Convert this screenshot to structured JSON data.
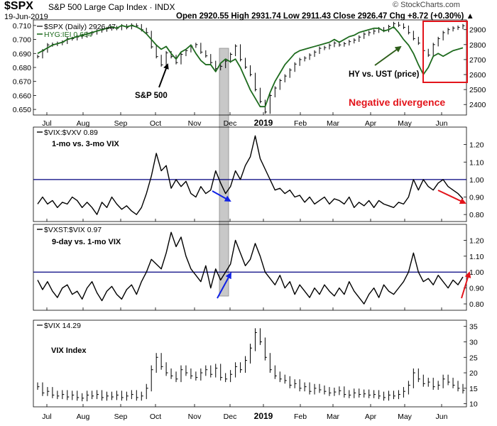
{
  "header": {
    "symbol": "$SPX",
    "name": "S&P 500 Large Cap Index",
    "exchange": "INDX",
    "date": "19-Jun-2019",
    "ohlc": "Open 2920.55   High 2931.74   Low 2911.43   Close 2926.47   Chg +8.72 (+0.30%) ▲",
    "copyright": "© StockCharts.com"
  },
  "colors": {
    "price": "#000000",
    "hyg_ratio": "#1e6b1e",
    "reference_line": "#00007f",
    "highlight_box": "#e3141b",
    "shaded_band": "#c8c8c8",
    "arrow_blue": "#1022e6",
    "arrow_red": "#e3141b",
    "arrow_green": "#2e5e1a"
  },
  "chart_data": [
    {
      "type": "line",
      "panel": "price",
      "legend": [
        "$SPX (Daily) 2926.47",
        "HYG:IEI 0.694"
      ],
      "right_axis_ticks": [
        2400,
        2500,
        2600,
        2700,
        2800,
        2900
      ],
      "left_axis_ticks": [
        0.65,
        0.66,
        0.67,
        0.68,
        0.69,
        0.7,
        0.71
      ],
      "ylim_right": [
        2330,
        2965
      ],
      "ylim_left": [
        0.646,
        0.714
      ],
      "x_labels": [
        "Jul",
        "Aug",
        "Sep",
        "Oct",
        "Nov",
        "Dec",
        "2019",
        "Feb",
        "Mar",
        "Apr",
        "May",
        "Jun"
      ],
      "series": [
        {
          "name": "$SPX (Daily)",
          "axis": "right",
          "style": "hlc_bars",
          "values": [
            2720,
            2758,
            2798,
            2802,
            2808,
            2816,
            2839,
            2840,
            2851,
            2858,
            2874,
            2879,
            2892,
            2898,
            2906,
            2913,
            2908,
            2925,
            2914,
            2930,
            2925,
            2900,
            2880,
            2785,
            2720,
            2665,
            2745,
            2720,
            2680,
            2735,
            2760,
            2790,
            2800,
            2750,
            2725,
            2680,
            2640,
            2655,
            2690,
            2735,
            2790,
            2700,
            2650,
            2600,
            2500,
            2420,
            2350,
            2460,
            2510,
            2560,
            2590,
            2630,
            2670,
            2700,
            2710,
            2730,
            2750,
            2775,
            2780,
            2795,
            2810,
            2798,
            2806,
            2820,
            2830,
            2850,
            2870,
            2880,
            2890,
            2905,
            2895,
            2920,
            2940,
            2930,
            2915,
            2880,
            2840,
            2810,
            2760,
            2730,
            2800,
            2840,
            2880,
            2900,
            2910,
            2915,
            2926
          ]
        },
        {
          "name": "HYG:IEI",
          "axis": "left",
          "style": "line",
          "values": [
            0.69,
            0.692,
            0.694,
            0.696,
            0.697,
            0.698,
            0.7,
            0.701,
            0.702,
            0.703,
            0.704,
            0.705,
            0.706,
            0.707,
            0.708,
            0.709,
            0.708,
            0.71,
            0.709,
            0.71,
            0.709,
            0.707,
            0.704,
            0.7,
            0.696,
            0.693,
            0.695,
            0.69,
            0.686,
            0.691,
            0.693,
            0.696,
            0.69,
            0.685,
            0.682,
            0.682,
            0.677,
            0.683,
            0.686,
            0.684,
            0.686,
            0.68,
            0.672,
            0.664,
            0.658,
            0.652,
            0.652,
            0.662,
            0.67,
            0.676,
            0.682,
            0.686,
            0.69,
            0.692,
            0.693,
            0.694,
            0.695,
            0.696,
            0.697,
            0.698,
            0.7,
            0.698,
            0.7,
            0.702,
            0.703,
            0.705,
            0.706,
            0.707,
            0.708,
            0.708,
            0.706,
            0.707,
            0.709,
            0.705,
            0.7,
            0.696,
            0.69,
            0.682,
            0.675,
            0.68,
            0.688,
            0.69,
            0.688,
            0.69,
            0.692,
            0.693,
            0.694
          ]
        }
      ],
      "annotations": [
        "S&P 500",
        "HY vs. UST (price)",
        "Negative divergence"
      ]
    },
    {
      "type": "line",
      "panel": "vix_vxv",
      "legend": "$VIX:$VXV 0.89",
      "label": "1-mo vs. 3-mo VIX",
      "ylim": [
        0.76,
        1.3
      ],
      "y_ticks": [
        0.8,
        0.9,
        1.0,
        1.1,
        1.2
      ],
      "reference_line": 1.0,
      "series": [
        {
          "name": "$VIX:$VXV",
          "values": [
            0.86,
            0.9,
            0.86,
            0.88,
            0.84,
            0.87,
            0.86,
            0.9,
            0.88,
            0.84,
            0.87,
            0.84,
            0.8,
            0.87,
            0.84,
            0.9,
            0.86,
            0.83,
            0.85,
            0.82,
            0.8,
            0.84,
            0.92,
            1.02,
            1.15,
            1.05,
            1.08,
            0.95,
            1.0,
            0.96,
            0.99,
            0.92,
            0.9,
            0.96,
            0.92,
            0.94,
            1.05,
            0.98,
            0.92,
            0.96,
            1.05,
            1.0,
            1.08,
            1.13,
            1.25,
            1.12,
            1.06,
            1.0,
            0.94,
            0.95,
            0.92,
            0.94,
            0.9,
            0.91,
            0.87,
            0.9,
            0.86,
            0.88,
            0.9,
            0.86,
            0.89,
            0.88,
            0.86,
            0.9,
            0.84,
            0.87,
            0.85,
            0.88,
            0.84,
            0.88,
            0.86,
            0.85,
            0.84,
            0.87,
            0.86,
            0.9,
            1.0,
            0.94,
            1.0,
            0.96,
            0.94,
            0.98,
            1.0,
            0.96,
            0.94,
            0.92,
            0.89
          ]
        }
      ]
    },
    {
      "type": "line",
      "panel": "vxst_vix",
      "legend": "$VXST:$VIX 0.97",
      "label": "9-day vs. 1-mo VIX",
      "ylim": [
        0.76,
        1.3
      ],
      "y_ticks": [
        0.8,
        0.9,
        1.0,
        1.1,
        1.2
      ],
      "reference_line": 1.0,
      "series": [
        {
          "name": "$VXST:$VIX",
          "values": [
            0.95,
            0.89,
            0.94,
            0.88,
            0.84,
            0.9,
            0.92,
            0.86,
            0.88,
            0.83,
            0.9,
            0.94,
            0.87,
            0.82,
            0.88,
            0.91,
            0.86,
            0.83,
            0.89,
            0.92,
            0.86,
            0.94,
            1.0,
            1.08,
            1.05,
            1.02,
            1.12,
            1.25,
            1.16,
            1.22,
            1.1,
            1.02,
            0.98,
            0.94,
            1.04,
            0.9,
            1.02,
            0.95,
            1.0,
            1.05,
            1.2,
            1.12,
            1.04,
            1.08,
            1.18,
            1.1,
            1.0,
            0.96,
            0.92,
            0.98,
            0.9,
            0.94,
            0.86,
            0.92,
            0.88,
            0.84,
            0.9,
            0.86,
            0.92,
            0.88,
            0.85,
            0.9,
            0.86,
            0.94,
            0.88,
            0.84,
            0.8,
            0.86,
            0.9,
            0.84,
            0.92,
            0.88,
            0.86,
            0.9,
            0.94,
            1.0,
            1.12,
            1.0,
            0.94,
            0.96,
            0.92,
            0.98,
            0.94,
            0.9,
            0.95,
            0.92,
            0.97
          ]
        }
      ]
    },
    {
      "type": "line",
      "panel": "vix",
      "legend": "$VIX 14.29",
      "label": "VIX Index",
      "ylim": [
        9,
        37
      ],
      "y_ticks": [
        10,
        15,
        20,
        25,
        30,
        35
      ],
      "x_labels": [
        "Jul",
        "Aug",
        "Sep",
        "Oct",
        "Nov",
        "Dec",
        "2019",
        "Feb",
        "Mar",
        "Apr",
        "May",
        "Jun"
      ],
      "series": [
        {
          "name": "$VIX",
          "style": "hlc_bars",
          "values": [
            15.5,
            13.5,
            14.0,
            12.8,
            12.5,
            13.0,
            12.2,
            12.8,
            12.0,
            11.8,
            12.8,
            12.5,
            13.0,
            12.0,
            12.5,
            12.2,
            12.8,
            12.0,
            12.5,
            13.0,
            12.0,
            12.5,
            15.0,
            21.0,
            25.0,
            22.0,
            20.0,
            19.0,
            18.0,
            21.0,
            20.0,
            19.0,
            18.5,
            20.0,
            21.0,
            19.5,
            21.5,
            18.5,
            18.0,
            19.5,
            22.0,
            21.0,
            24.0,
            28.0,
            33.0,
            30.0,
            25.0,
            21.0,
            19.0,
            18.0,
            17.5,
            16.0,
            16.5,
            15.0,
            15.5,
            14.0,
            15.0,
            14.5,
            14.0,
            13.5,
            13.8,
            14.2,
            13.0,
            12.8,
            13.5,
            13.0,
            13.2,
            12.8,
            13.0,
            12.5,
            12.0,
            12.8,
            12.5,
            13.0,
            14.0,
            16.0,
            20.0,
            18.0,
            16.5,
            17.0,
            15.5,
            16.0,
            18.0,
            17.0,
            16.0,
            15.0,
            14.3
          ]
        }
      ]
    }
  ]
}
